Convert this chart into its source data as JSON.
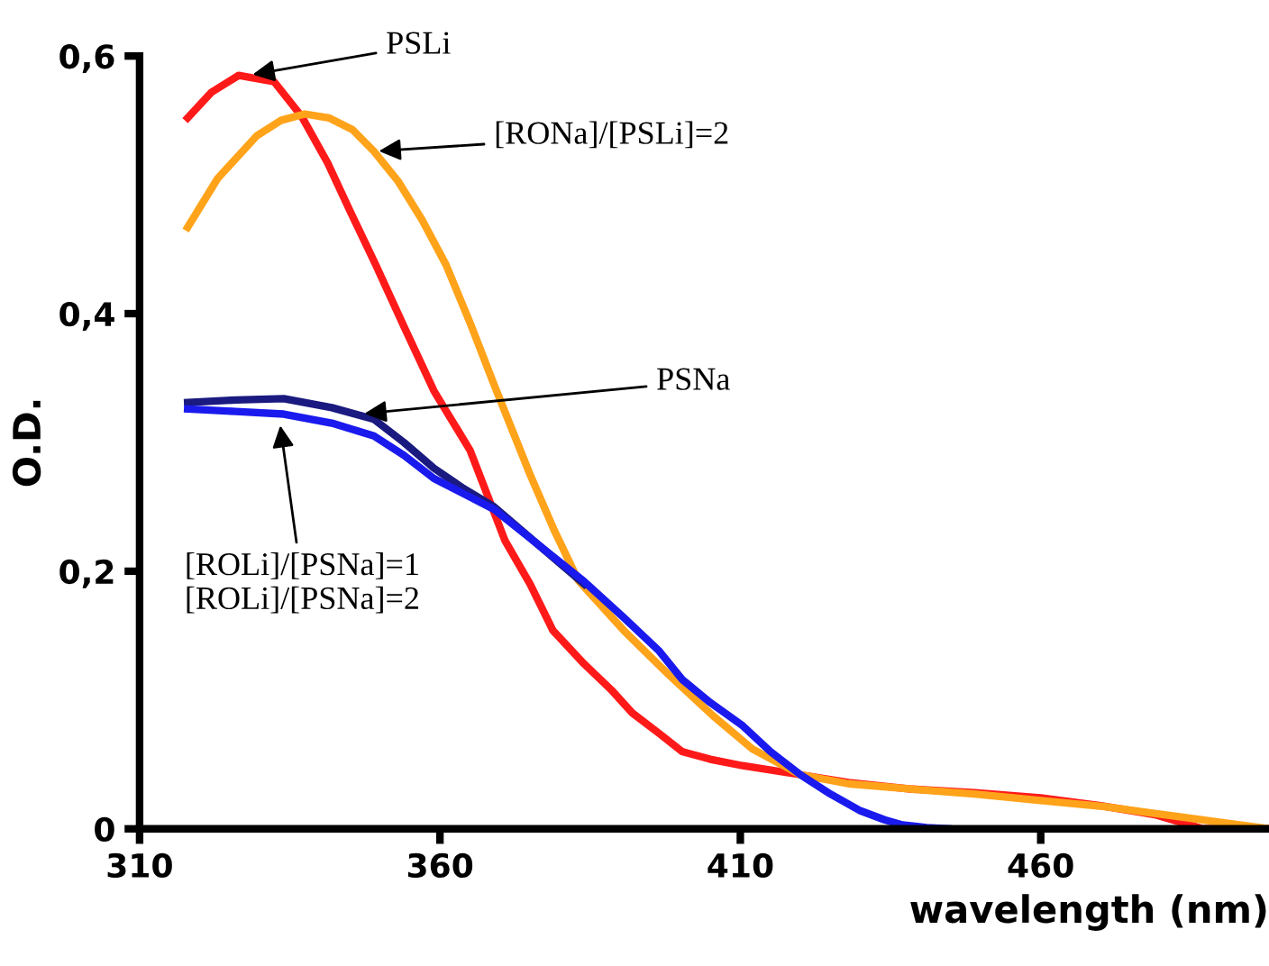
{
  "chart_data": {
    "type": "line",
    "xlabel": "wavelength (nm)",
    "ylabel": "O.D.",
    "xlim": [
      310,
      498
    ],
    "ylim": [
      0,
      0.6
    ],
    "xticks": [
      310,
      360,
      410,
      460
    ],
    "yticks": [
      0,
      {
        "value": 0.2,
        "label": "0,2"
      },
      {
        "value": 0.4,
        "label": "0,4"
      },
      {
        "value": 0.6,
        "label": "0,6"
      }
    ],
    "grid": false,
    "legend": false,
    "marker": "none",
    "line_style": "solid",
    "series": [
      {
        "color": "#ff1a1a",
        "x": [
          318,
          322,
          326.5,
          332.4,
          337,
          341.3,
          345,
          349.3,
          354,
          359,
          365,
          370.8,
          375,
          378.8,
          384,
          388.5,
          392,
          396.5,
          400.3,
          405,
          410.4,
          420,
          428,
          438,
          449,
          460,
          470,
          479,
          487,
          498
        ],
        "values": [
          0.552,
          0.572,
          0.585,
          0.58,
          0.553,
          0.517,
          0.48,
          0.438,
          0.39,
          0.34,
          0.294,
          0.224,
          0.19,
          0.154,
          0.128,
          0.108,
          0.09,
          0.074,
          0.06,
          0.054,
          0.049,
          0.042,
          0.036,
          0.031,
          0.028,
          0.024,
          0.018,
          0.011,
          0.0,
          0.0
        ]
      },
      {
        "color": "#ffa31a",
        "x": [
          318,
          323,
          329.5,
          333.5,
          337.5,
          341.5,
          345.4,
          349,
          353,
          357,
          361,
          365,
          369,
          375,
          379,
          383,
          390.6,
          398,
          405.4,
          412,
          420,
          428,
          438,
          449,
          460,
          471,
          482,
          490,
          498
        ],
        "values": [
          0.467,
          0.505,
          0.538,
          0.55,
          0.555,
          0.552,
          0.543,
          0.526,
          0.503,
          0.473,
          0.438,
          0.393,
          0.345,
          0.275,
          0.232,
          0.193,
          0.154,
          0.12,
          0.088,
          0.062,
          0.042,
          0.035,
          0.031,
          0.027,
          0.022,
          0.017,
          0.01,
          0.005,
          0.0
        ]
      },
      {
        "color": "#1a1a80",
        "x": [
          318,
          326,
          334,
          342,
          349,
          354,
          359,
          364,
          369,
          376,
          384
        ],
        "values": [
          0.331,
          0.333,
          0.334,
          0.327,
          0.318,
          0.3,
          0.28,
          0.264,
          0.25,
          0.222,
          0.19
        ]
      },
      {
        "color": "#1a1aee",
        "x": [
          318,
          326,
          334,
          342,
          349,
          354,
          359,
          364,
          369,
          376,
          384,
          390.6,
          396.5,
          400.3,
          405,
          410.4,
          415,
          420,
          425,
          430,
          434,
          437,
          441,
          444.6
        ],
        "values": [
          0.326,
          0.324,
          0.322,
          0.315,
          0.305,
          0.29,
          0.272,
          0.26,
          0.248,
          0.222,
          0.192,
          0.164,
          0.138,
          0.116,
          0.098,
          0.08,
          0.06,
          0.042,
          0.027,
          0.014,
          0.007,
          0.003,
          0.001,
          0.0
        ]
      }
    ],
    "annotations": [
      {
        "text": "PSLi",
        "x": 328,
        "y": 0.585
      },
      {
        "text": "[RONa]/[PSLi]=2",
        "x": 349,
        "y": 0.526
      },
      {
        "text": "PSNa",
        "x": 346.6,
        "y": 0.322
      },
      {
        "text": "[ROLi]/[PSNa]=1\n[ROLi]/[PSNa]=2",
        "x": 333.3,
        "y": 0.317
      }
    ]
  }
}
